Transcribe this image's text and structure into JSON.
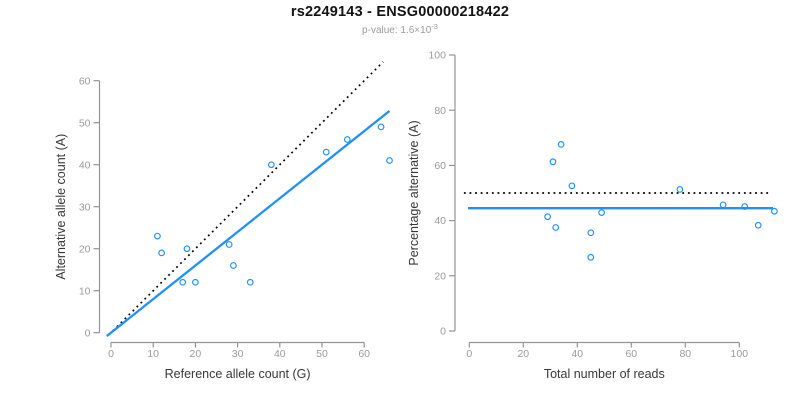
{
  "header": {
    "title": "rs2249143 - ENSG00000218422",
    "subtitle_prefix": "p-value: 1.6×10",
    "subtitle_exponent": "-3"
  },
  "colors": {
    "accent_blue": "#1E90FF",
    "dotted_black": "#000000",
    "axis_gray": "#949494",
    "tick_label_gray": "#9b9b9b",
    "axis_title_dark": "#383838"
  },
  "chart_data": [
    {
      "type": "scatter",
      "name": "allele-counts",
      "xlabel": "Reference allele count (G)",
      "ylabel": "Alternative allele count (A)",
      "xlim": [
        0,
        66
      ],
      "ylim": [
        0,
        66
      ],
      "grid": false,
      "x_ticks": [
        0,
        10,
        20,
        30,
        40,
        50,
        60
      ],
      "y_ticks": [
        0,
        10,
        20,
        30,
        40,
        50,
        60
      ],
      "points": [
        [
          11,
          23
        ],
        [
          12,
          19
        ],
        [
          17,
          12
        ],
        [
          18,
          20
        ],
        [
          20,
          12
        ],
        [
          28,
          21
        ],
        [
          29,
          16
        ],
        [
          33,
          12
        ],
        [
          38,
          40
        ],
        [
          51,
          43
        ],
        [
          56,
          46
        ],
        [
          64,
          49
        ],
        [
          66,
          41
        ]
      ],
      "lines": [
        {
          "name": "identity-line",
          "style": "dotted",
          "color": "#000000",
          "x1": -0.5,
          "y1": -0.5,
          "x2": 64.5,
          "y2": 64.5
        },
        {
          "name": "fit-line",
          "style": "solid",
          "color": "#1E90FF",
          "x1": -1,
          "y1": -0.8,
          "x2": 66,
          "y2": 52.8
        }
      ]
    },
    {
      "type": "scatter",
      "name": "percentage-vs-reads",
      "xlabel": "Total number of reads",
      "ylabel": "Percentage alternative (A)",
      "xlim": [
        0,
        113
      ],
      "ylim": [
        0,
        100
      ],
      "grid": false,
      "x_ticks": [
        0,
        20,
        40,
        60,
        80,
        100
      ],
      "y_ticks": [
        0,
        20,
        40,
        60,
        80,
        100
      ],
      "points": [
        [
          34,
          67.6
        ],
        [
          31,
          61.3
        ],
        [
          38,
          52.6
        ],
        [
          29,
          41.4
        ],
        [
          32,
          37.5
        ],
        [
          49,
          42.9
        ],
        [
          45,
          35.6
        ],
        [
          45,
          26.7
        ],
        [
          78,
          51.3
        ],
        [
          94,
          45.7
        ],
        [
          102,
          45.1
        ],
        [
          113,
          43.4
        ],
        [
          107,
          38.3
        ]
      ],
      "lines": [
        {
          "name": "expected-50pct-line",
          "style": "dotted",
          "color": "#000000",
          "x1": -2,
          "y1": 50,
          "x2": 112,
          "y2": 50
        },
        {
          "name": "mean-percentage-line",
          "style": "solid",
          "color": "#1E90FF",
          "x1": -0.5,
          "y1": 44.5,
          "x2": 112.5,
          "y2": 44.5
        }
      ]
    }
  ]
}
